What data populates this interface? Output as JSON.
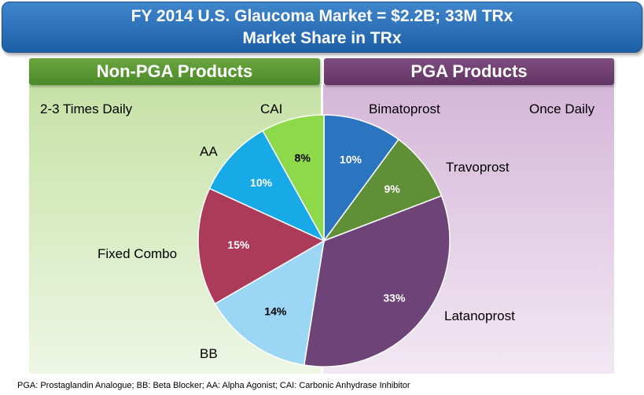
{
  "title": {
    "line1": "FY 2014 U.S. Glaucoma Market = $2.2B; 33M TRx",
    "line2": "Market Share in TRx"
  },
  "groups": {
    "left": {
      "header": "Non-PGA Products",
      "frequency": "2-3 Times Daily",
      "color": "#5b9a33"
    },
    "right": {
      "header": "PGA Products",
      "frequency": "Once Daily",
      "color": "#6e3f70"
    }
  },
  "chart_data": {
    "type": "pie",
    "title": "Market Share in TRx",
    "slices": [
      {
        "label": "Bimatoprost",
        "value": 10,
        "value_label": "10%",
        "color": "#2a74c0"
      },
      {
        "label": "Travoprost",
        "value": 9,
        "value_label": "9%",
        "color": "#5f8f37"
      },
      {
        "label": "Latanoprost",
        "value": 33,
        "value_label": "33%",
        "color": "#6e4378"
      },
      {
        "label": "BB",
        "value": 14,
        "value_label": "14%",
        "color": "#9bd7f5"
      },
      {
        "label": "Fixed Combo",
        "value": 15,
        "value_label": "15%",
        "color": "#ac3a5a"
      },
      {
        "label": "AA",
        "value": 10,
        "value_label": "10%",
        "color": "#18aae6"
      },
      {
        "label": "CAI",
        "value": 8,
        "value_label": "8%",
        "color": "#8ed94a"
      }
    ]
  },
  "footnote": "PGA:  Prostaglandin Analogue; BB: Beta Blocker; AA:  Alpha Agonist; CAI:  Carbonic Anhydrase Inhibitor"
}
